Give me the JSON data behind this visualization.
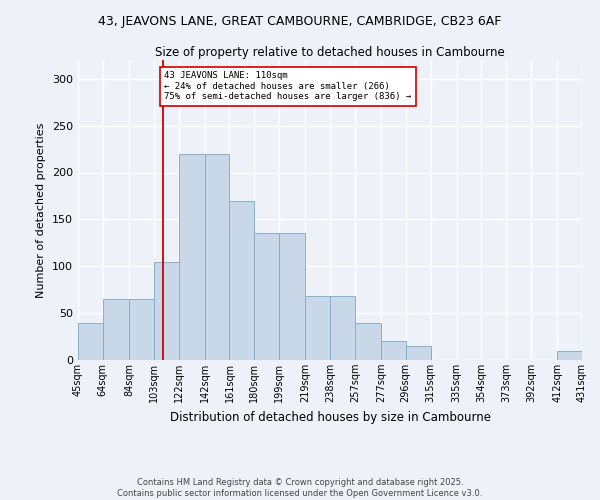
{
  "title": "43, JEAVONS LANE, GREAT CAMBOURNE, CAMBRIDGE, CB23 6AF",
  "subtitle": "Size of property relative to detached houses in Cambourne",
  "xlabel": "Distribution of detached houses by size in Cambourne",
  "ylabel": "Number of detached properties",
  "bar_color": "#c8d8e8",
  "bar_edge_color": "#8aafc8",
  "background_color": "#eef2f8",
  "grid_color": "#ffffff",
  "vline_x": 110,
  "vline_color": "#cc0000",
  "annotation_text": "43 JEAVONS LANE: 110sqm\n← 24% of detached houses are smaller (266)\n75% of semi-detached houses are larger (836) →",
  "annotation_box_color": "white",
  "annotation_edge_color": "#cc0000",
  "bins": [
    45,
    64,
    84,
    103,
    122,
    142,
    161,
    180,
    199,
    219,
    238,
    257,
    277,
    296,
    315,
    335,
    354,
    373,
    392,
    412,
    431
  ],
  "counts": [
    40,
    65,
    65,
    105,
    220,
    220,
    170,
    135,
    135,
    68,
    68,
    40,
    20,
    15,
    0,
    0,
    0,
    0,
    0,
    10
  ],
  "ylim": [
    0,
    320
  ],
  "yticks": [
    0,
    50,
    100,
    150,
    200,
    250,
    300
  ],
  "footnote": "Contains HM Land Registry data © Crown copyright and database right 2025.\nContains public sector information licensed under the Open Government Licence v3.0.",
  "tick_labels": [
    "45sqm",
    "64sqm",
    "84sqm",
    "103sqm",
    "122sqm",
    "142sqm",
    "161sqm",
    "180sqm",
    "199sqm",
    "219sqm",
    "238sqm",
    "257sqm",
    "277sqm",
    "296sqm",
    "315sqm",
    "335sqm",
    "354sqm",
    "373sqm",
    "392sqm",
    "412sqm",
    "431sqm"
  ]
}
